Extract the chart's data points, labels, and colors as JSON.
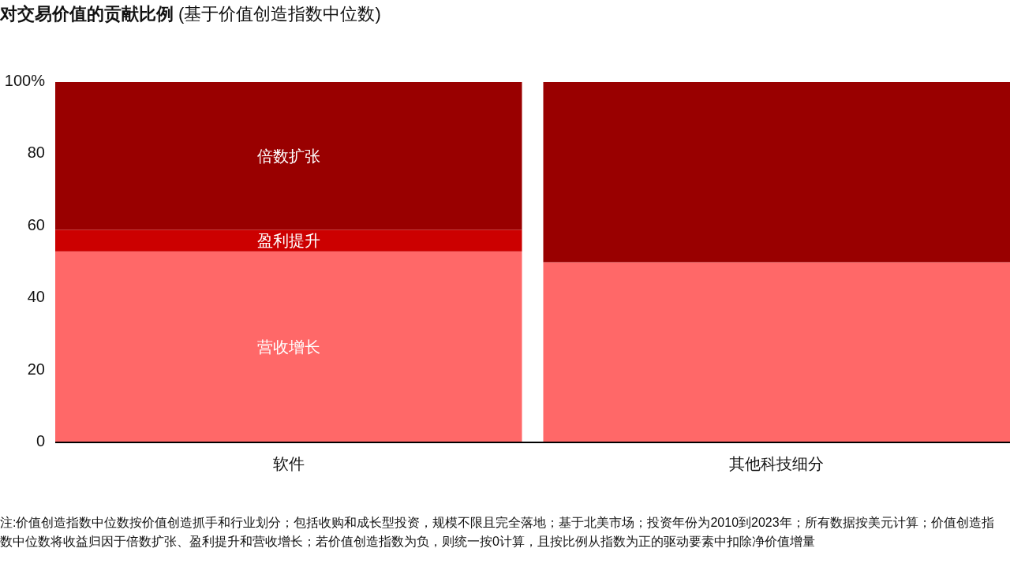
{
  "chart_data": {
    "type": "bar",
    "stacked": true,
    "title": "**对交易价值的贡献比例** (基于价值创造指数中位数)",
    "categories": [
      "软件",
      "其他科技细分"
    ],
    "series": [
      {
        "name": "营收增长",
        "color": "#ff6868",
        "values": [
          53,
          50
        ]
      },
      {
        "name": "盈利提升",
        "color": "#cc0000",
        "values": [
          6,
          0
        ]
      },
      {
        "name": "倍数扩张",
        "color": "#990000",
        "values": [
          41,
          50
        ]
      }
    ],
    "ylim": [
      0,
      100
    ],
    "yticks": [
      0,
      20,
      40,
      60,
      80,
      {
        "value": 100,
        "label": "100%"
      }
    ],
    "annotations": [
      "注:价值创造指数中位数按价值创造抓手和行业划分；包括收购和成长型投资，规模不限且完全落地；基于北美市场；投资年份为2010到2023年；所有数据按美元计算；价值创造指数中位数将收益归因于倍数扩张、盈利提升和营收增长；若价值创造指数为负，则统一按0计算，且按比例从指数为正的驱动要素中扣除净价值增量"
    ]
  }
}
